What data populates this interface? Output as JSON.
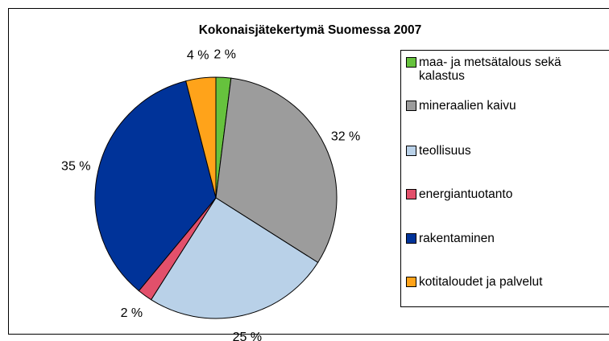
{
  "chart_data": {
    "type": "pie",
    "title": "Kokonaisjätekertymä Suomessa 2007",
    "categories": [
      "maa- ja metsätalous sekä kalastus",
      "mineraalien kaivu",
      "teollisuus",
      "energiantuotanto",
      "rakentaminen",
      "kotitaloudet ja palvelut"
    ],
    "values": [
      2,
      32,
      25,
      2,
      35,
      4
    ],
    "value_labels": [
      "2 %",
      "32 %",
      "25 %",
      "2 %",
      "35 %",
      "4 %"
    ],
    "colors": [
      "#66c23d",
      "#9c9c9c",
      "#b9d1e8",
      "#e2506b",
      "#003399",
      "#ffa31a"
    ],
    "legend": "right"
  }
}
